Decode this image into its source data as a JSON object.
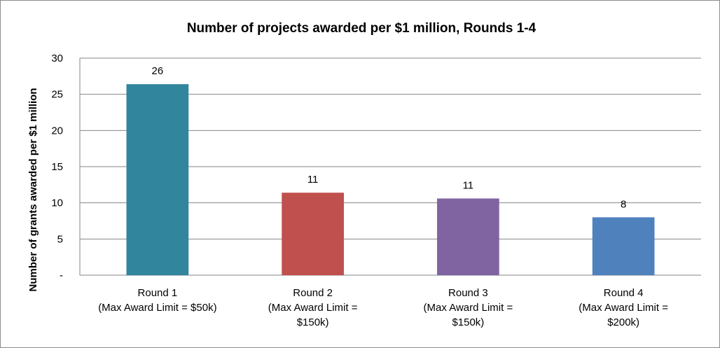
{
  "chart_data": {
    "type": "bar",
    "title": "Number of projects awarded per $1 million, Rounds 1-4",
    "ylabel": "Number of grants awarded per $1 million",
    "xlabel": "",
    "ylim": [
      0,
      30
    ],
    "yticks": [
      0,
      5,
      10,
      15,
      20,
      25,
      30
    ],
    "ytick_labels": [
      "-",
      "5",
      "10",
      "15",
      "20",
      "25",
      "30"
    ],
    "grid": true,
    "legend": "none",
    "categories": [
      [
        "Round 1",
        "(Max Award Limit = $50k)"
      ],
      [
        "Round 2",
        "(Max Award Limit =",
        "$150k)"
      ],
      [
        "Round 3",
        "(Max Award Limit =",
        "$150k)"
      ],
      [
        "Round 4",
        "(Max Award Limit =",
        "$200k)"
      ]
    ],
    "values": [
      26.4,
      11.4,
      10.6,
      8.0
    ],
    "data_labels": [
      "26",
      "11",
      "11",
      "8"
    ],
    "colors": [
      "#31859c",
      "#c0504d",
      "#8064a2",
      "#4f81bd"
    ]
  }
}
